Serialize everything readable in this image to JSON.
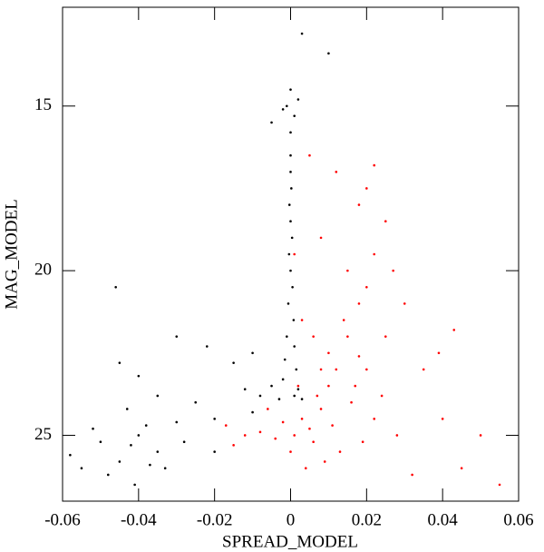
{
  "chart_data": {
    "type": "scatter",
    "xlabel": "SPREAD_MODEL",
    "ylabel": "MAG_MODEL",
    "xlim": [
      -0.06,
      0.06
    ],
    "xticks": [
      -0.06,
      -0.04,
      -0.02,
      0,
      0.02,
      0.04,
      0.06
    ],
    "ylim": [
      12,
      27
    ],
    "yticks": [
      15,
      20,
      25
    ],
    "y_inverted": true,
    "series": [
      {
        "color": "#000000",
        "x": [
          0,
          -0.001,
          0.001,
          -0.002,
          0.002,
          0,
          0,
          0,
          0.0002,
          -0.0003,
          0,
          0.0004,
          -0.0004,
          0,
          0.0005,
          -0.0006,
          0.0008,
          -0.001,
          0.001,
          -0.0015,
          0.0015,
          -0.002,
          0.002,
          -0.003,
          0.003,
          -0.005,
          -0.008,
          -0.012,
          -0.01,
          -0.02,
          0.001,
          0.003,
          0.01,
          -0.005,
          -0.04,
          -0.042,
          -0.038,
          -0.045,
          -0.035,
          -0.03,
          -0.05,
          -0.048,
          -0.033,
          -0.043,
          -0.037,
          -0.028,
          -0.052,
          -0.055,
          -0.025,
          -0.04,
          -0.045,
          -0.046,
          -0.022,
          -0.03,
          -0.015,
          -0.02,
          -0.01,
          -0.035,
          -0.041,
          -0.058
        ],
        "values": [
          14.5,
          15,
          15.3,
          15.1,
          14.8,
          15.8,
          16.5,
          17,
          17.5,
          18,
          18.5,
          19,
          19.5,
          20,
          20.5,
          21,
          21.5,
          22,
          22.3,
          22.7,
          23,
          23.3,
          23.6,
          23.9,
          23.9,
          23.5,
          23.8,
          23.6,
          22.5,
          24.5,
          23.8,
          12.8,
          13.4,
          15.5,
          25,
          25.3,
          24.7,
          25.8,
          25.5,
          24.6,
          25.2,
          26.2,
          26,
          24.2,
          25.9,
          25.2,
          24.8,
          26,
          24,
          23.2,
          22.8,
          20.5,
          22.3,
          22,
          22.8,
          25.5,
          24.3,
          23.8,
          26.5,
          25.6
        ]
      },
      {
        "color": "#ff0000",
        "x": [
          0.003,
          0.005,
          0.001,
          -0.002,
          0.008,
          0.006,
          -0.004,
          0.01,
          0.012,
          0.015,
          0.018,
          0.014,
          0.02,
          0.01,
          0.008,
          0.016,
          0.02,
          0.022,
          0.013,
          -0.008,
          -0.012,
          -0.015,
          0.004,
          0.009,
          0.025,
          0.022,
          0.018,
          0.02,
          0.012,
          0.025,
          0.03,
          0.035,
          0.04,
          0.045,
          0.05,
          0.055,
          0.028,
          0.032,
          0.005,
          0.008,
          0.015,
          0.022,
          0.003,
          0.006,
          0.002,
          0.017,
          0.024,
          -0.006,
          0.011,
          0.019,
          -0.017,
          0,
          0.043,
          0.039,
          0.027,
          0.001,
          0.018,
          0.007
        ],
        "values": [
          24.5,
          24.8,
          25,
          24.6,
          24.2,
          25.2,
          25.1,
          23.5,
          23,
          22,
          21,
          21.5,
          20.5,
          22.5,
          23,
          24,
          23,
          24.5,
          25.5,
          24.9,
          25,
          25.3,
          26,
          25.8,
          22,
          19.5,
          18,
          17.5,
          17,
          18.5,
          21,
          23,
          24.5,
          26,
          25,
          26.5,
          25,
          26.2,
          16.5,
          19,
          20,
          16.8,
          21.5,
          22,
          23.5,
          23.5,
          23.8,
          24.2,
          24.7,
          25.2,
          24.7,
          25.5,
          21.8,
          22.5,
          20,
          19.5,
          22.6,
          23.8
        ]
      }
    ]
  }
}
